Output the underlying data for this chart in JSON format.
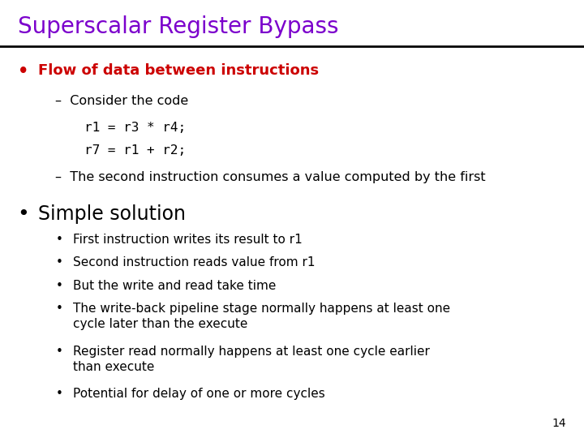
{
  "title": "Superscalar Register Bypass",
  "title_color": "#7B00CC",
  "background_color": "#FFFFFF",
  "page_number": "14",
  "bullet1_text": "Flow of data between instructions",
  "bullet1_color": "#CC0000",
  "sub1_lines": [
    "–  Consider the code",
    "r1 = r3 * r4;",
    "r7 = r1 + r2;",
    "–  The second instruction consumes a value computed by the first"
  ],
  "bullet2_text": "Simple solution",
  "bullet2_color": "#000000",
  "sub2_lines": [
    "First instruction writes its result to r1",
    "Second instruction reads value from r1",
    "But the write and read take time",
    "The write-back pipeline stage normally happens at least one\ncycle later than the execute",
    "Register read normally happens at least one cycle earlier\nthan execute",
    "Potential for delay of one or more cycles"
  ],
  "sub2_line_counts": [
    1,
    1,
    1,
    2,
    2,
    1
  ]
}
